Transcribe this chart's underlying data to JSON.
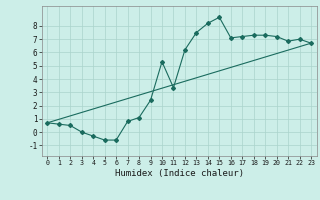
{
  "xlabel": "Humidex (Indice chaleur)",
  "ylabel": "",
  "bg_color": "#cceee8",
  "line_color": "#1a6b5e",
  "grid_color": "#aad4cc",
  "xlim": [
    -0.5,
    23.5
  ],
  "ylim": [
    -1.8,
    9.5
  ],
  "yticks": [
    -1,
    0,
    1,
    2,
    3,
    4,
    5,
    6,
    7,
    8
  ],
  "xticks": [
    0,
    1,
    2,
    3,
    4,
    5,
    6,
    7,
    8,
    9,
    10,
    11,
    12,
    13,
    14,
    15,
    16,
    17,
    18,
    19,
    20,
    21,
    22,
    23
  ],
  "curve1_x": [
    0,
    1,
    2,
    3,
    4,
    5,
    6,
    7,
    8,
    9,
    10,
    11,
    12,
    13,
    14,
    15,
    16,
    17,
    18,
    19,
    20,
    21,
    22,
    23
  ],
  "curve1_y": [
    0.7,
    0.6,
    0.5,
    0.0,
    -0.3,
    -0.6,
    -0.6,
    0.8,
    1.1,
    2.4,
    5.3,
    3.35,
    6.2,
    7.5,
    8.2,
    8.65,
    7.1,
    7.2,
    7.3,
    7.3,
    7.2,
    6.85,
    7.0,
    6.7
  ],
  "curve2_x": [
    0,
    23
  ],
  "curve2_y": [
    0.7,
    6.7
  ]
}
